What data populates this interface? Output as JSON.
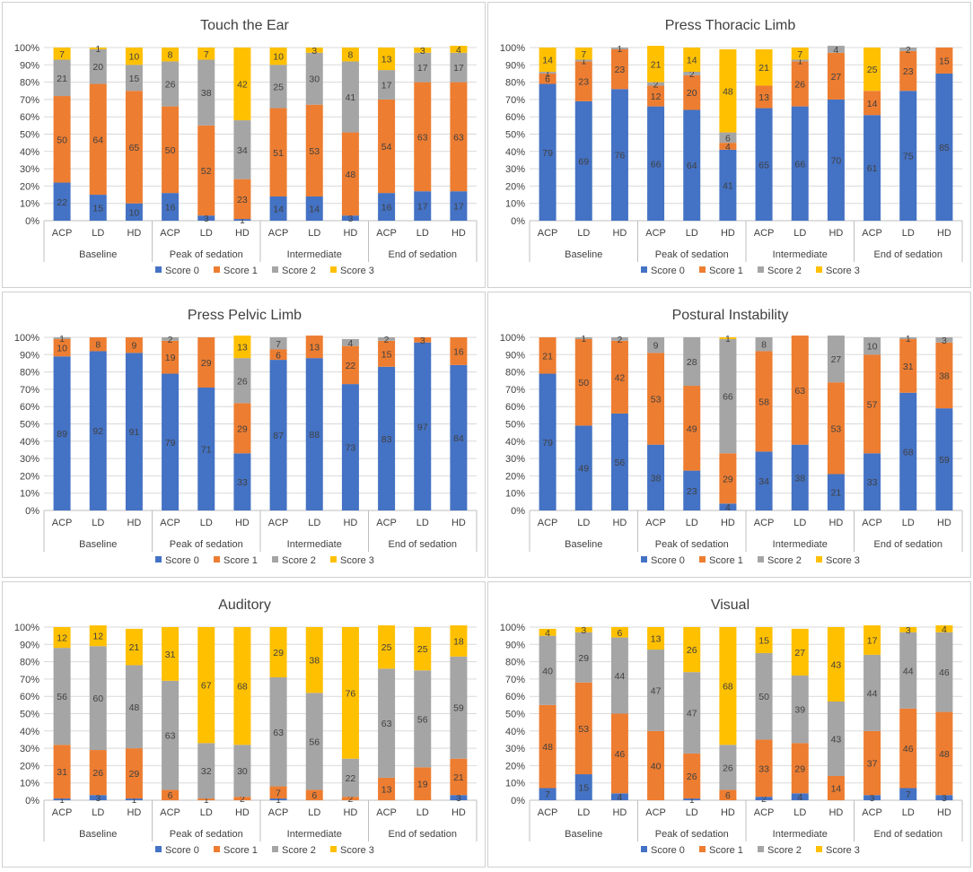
{
  "colors": {
    "score0": "#4472C4",
    "score1": "#ED7D31",
    "score2": "#A5A5A5",
    "score3": "#FFC000",
    "grid": "#D9D9D9",
    "axis": "#BFBFBF",
    "text": "#404040"
  },
  "legend": [
    "Score 0",
    "Score 1",
    "Score 2",
    "Score 3"
  ],
  "y_ticks": [
    "0%",
    "10%",
    "20%",
    "30%",
    "40%",
    "50%",
    "60%",
    "70%",
    "80%",
    "90%",
    "100%"
  ],
  "categories": [
    "ACP",
    "LD",
    "HD",
    "ACP",
    "LD",
    "HD",
    "ACP",
    "LD",
    "HD",
    "ACP",
    "LD",
    "HD"
  ],
  "groups": [
    "Baseline",
    "Peak of sedation",
    "Intermediate",
    "End of sedation"
  ],
  "chart_data": [
    {
      "type": "bar",
      "stacked": true,
      "percent": true,
      "title": "Touch the Ear",
      "groups": [
        "Baseline",
        "Peak of sedation",
        "Intermediate",
        "End of sedation"
      ],
      "categories": [
        "ACP",
        "LD",
        "HD",
        "ACP",
        "LD",
        "HD",
        "ACP",
        "LD",
        "HD",
        "ACP",
        "LD",
        "HD"
      ],
      "ylim": [
        0,
        100
      ],
      "series": [
        {
          "name": "Score 0",
          "values": [
            22,
            15,
            10,
            16,
            3,
            1,
            14,
            14,
            3,
            16,
            17,
            17
          ]
        },
        {
          "name": "Score 1",
          "values": [
            50,
            64,
            65,
            50,
            52,
            23,
            51,
            53,
            48,
            54,
            63,
            63
          ]
        },
        {
          "name": "Score 2",
          "values": [
            21,
            20,
            15,
            26,
            38,
            34,
            25,
            30,
            41,
            17,
            17,
            17
          ]
        },
        {
          "name": "Score 3",
          "values": [
            7,
            1,
            10,
            8,
            7,
            42,
            10,
            3,
            8,
            13,
            3,
            4
          ]
        }
      ]
    },
    {
      "type": "bar",
      "stacked": true,
      "percent": true,
      "title": "Press Thoracic Limb",
      "groups": [
        "Baseline",
        "Peak of sedation",
        "Intermediate",
        "End of sedation"
      ],
      "categories": [
        "ACP",
        "LD",
        "HD",
        "ACP",
        "LD",
        "HD",
        "ACP",
        "LD",
        "HD",
        "ACP",
        "LD",
        "HD"
      ],
      "ylim": [
        0,
        100
      ],
      "series": [
        {
          "name": "Score 0",
          "values": [
            79,
            69,
            76,
            66,
            64,
            41,
            65,
            66,
            70,
            61,
            75,
            85
          ]
        },
        {
          "name": "Score 1",
          "values": [
            6,
            23,
            23,
            12,
            20,
            4,
            13,
            26,
            27,
            14,
            23,
            15
          ]
        },
        {
          "name": "Score 2",
          "values": [
            1,
            1,
            1,
            2,
            2,
            6,
            0,
            1,
            4,
            0,
            2,
            0
          ]
        },
        {
          "name": "Score 3",
          "values": [
            14,
            7,
            0,
            21,
            14,
            48,
            21,
            7,
            0,
            25,
            0,
            0
          ]
        }
      ]
    },
    {
      "type": "bar",
      "stacked": true,
      "percent": true,
      "title": "Press Pelvic Limb",
      "groups": [
        "Baseline",
        "Peak of sedation",
        "Intermediate",
        "End of sedation"
      ],
      "categories": [
        "ACP",
        "LD",
        "HD",
        "ACP",
        "LD",
        "HD",
        "ACP",
        "LD",
        "HD",
        "ACP",
        "LD",
        "HD"
      ],
      "ylim": [
        0,
        100
      ],
      "series": [
        {
          "name": "Score 0",
          "values": [
            89,
            92,
            91,
            79,
            71,
            33,
            87,
            88,
            73,
            83,
            97,
            84
          ]
        },
        {
          "name": "Score 1",
          "values": [
            10,
            8,
            9,
            19,
            29,
            29,
            6,
            13,
            22,
            15,
            3,
            16
          ]
        },
        {
          "name": "Score 2",
          "values": [
            1,
            0,
            0,
            2,
            0,
            26,
            7,
            0,
            4,
            2,
            0,
            0
          ]
        },
        {
          "name": "Score 3",
          "values": [
            0,
            0,
            0,
            0,
            0,
            13,
            0,
            0,
            0,
            0,
            0,
            0
          ]
        }
      ]
    },
    {
      "type": "bar",
      "stacked": true,
      "percent": true,
      "title": "Postural Instability",
      "groups": [
        "Baseline",
        "Peak of sedation",
        "Intermediate",
        "End of sedation"
      ],
      "categories": [
        "ACP",
        "LD",
        "HD",
        "ACP",
        "LD",
        "HD",
        "ACP",
        "LD",
        "HD",
        "ACP",
        "LD",
        "HD"
      ],
      "ylim": [
        0,
        100
      ],
      "series": [
        {
          "name": "Score 0",
          "values": [
            79,
            49,
            56,
            38,
            23,
            4,
            34,
            38,
            21,
            33,
            68,
            59
          ]
        },
        {
          "name": "Score 1",
          "values": [
            21,
            50,
            42,
            53,
            49,
            29,
            58,
            63,
            53,
            57,
            31,
            38
          ]
        },
        {
          "name": "Score 2",
          "values": [
            0,
            1,
            2,
            9,
            28,
            66,
            8,
            0,
            27,
            10,
            1,
            3
          ]
        },
        {
          "name": "Score 3",
          "values": [
            0,
            0,
            0,
            0,
            0,
            1,
            0,
            0,
            0,
            0,
            0,
            0
          ]
        }
      ]
    },
    {
      "type": "bar",
      "stacked": true,
      "percent": true,
      "title": "Auditory",
      "groups": [
        "Baseline",
        "Peak of sedation",
        "Intermediate",
        "End of sedation"
      ],
      "categories": [
        "ACP",
        "LD",
        "HD",
        "ACP",
        "LD",
        "HD",
        "ACP",
        "LD",
        "HD",
        "ACP",
        "LD",
        "HD"
      ],
      "ylim": [
        0,
        100
      ],
      "series": [
        {
          "name": "Score 0",
          "values": [
            1,
            3,
            1,
            0,
            0,
            0,
            1,
            0,
            0,
            0,
            0,
            3
          ]
        },
        {
          "name": "Score 1",
          "values": [
            31,
            26,
            29,
            6,
            1,
            2,
            7,
            6,
            2,
            13,
            19,
            21
          ]
        },
        {
          "name": "Score 2",
          "values": [
            56,
            60,
            48,
            63,
            32,
            30,
            63,
            56,
            22,
            63,
            56,
            59
          ]
        },
        {
          "name": "Score 3",
          "values": [
            12,
            12,
            21,
            31,
            67,
            68,
            29,
            38,
            76,
            25,
            25,
            18
          ]
        }
      ]
    },
    {
      "type": "bar",
      "stacked": true,
      "percent": true,
      "title": "Visual",
      "groups": [
        "Baseline",
        "Peak of sedation",
        "Intermediate",
        "End of sedation"
      ],
      "categories": [
        "ACP",
        "LD",
        "HD",
        "ACP",
        "LD",
        "HD",
        "ACP",
        "LD",
        "HD",
        "ACP",
        "LD",
        "HD"
      ],
      "ylim": [
        0,
        100
      ],
      "series": [
        {
          "name": "Score 0",
          "values": [
            7,
            15,
            4,
            0,
            1,
            0,
            2,
            4,
            0,
            3,
            7,
            3
          ]
        },
        {
          "name": "Score 1",
          "values": [
            48,
            53,
            46,
            40,
            26,
            6,
            33,
            29,
            14,
            37,
            46,
            48
          ]
        },
        {
          "name": "Score 2",
          "values": [
            40,
            29,
            44,
            47,
            47,
            26,
            50,
            39,
            43,
            44,
            44,
            46
          ]
        },
        {
          "name": "Score 3",
          "values": [
            4,
            3,
            6,
            13,
            26,
            68,
            15,
            27,
            43,
            17,
            3,
            4
          ]
        }
      ]
    }
  ]
}
